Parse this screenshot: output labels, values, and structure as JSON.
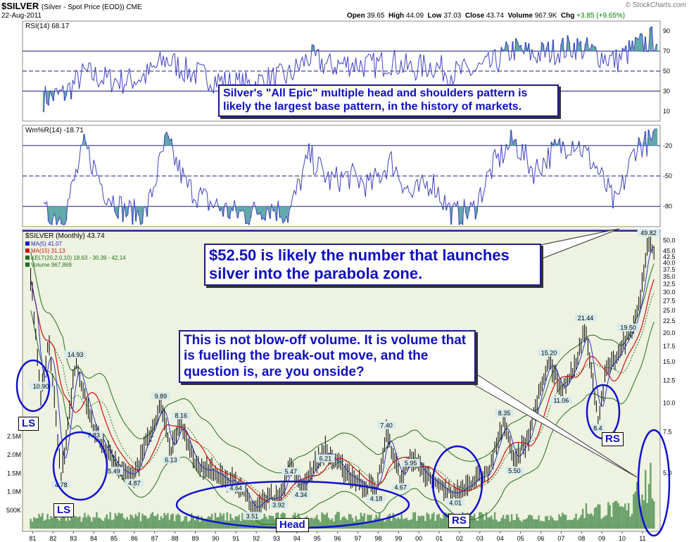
{
  "header": {
    "symbol": "$SILVER",
    "symbol_desc": "(Silver - Spot Price (EOD)) CME",
    "date": "22-Aug-2011",
    "stats": [
      {
        "label": "Open",
        "value": "39.65"
      },
      {
        "label": "High",
        "value": "44.09"
      },
      {
        "label": "Low",
        "value": "37.03"
      },
      {
        "label": "Close",
        "value": "43.74"
      },
      {
        "label": "Volume",
        "value": "967.9K"
      },
      {
        "label": "Chg",
        "value": "+3.85 (+9.65%)"
      }
    ],
    "brand": "© StockCharts.com"
  },
  "annotations": {
    "callout_1": "Silver's \"All Epic\" multiple head and shoulders pattern is likely the largest base pattern, in the history of markets.",
    "callout_2": "$52.50 is likely the number that launches silver into the parabola zone.",
    "callout_3": "This is not blow-off volume.  It is volume that is fuelling the break-out move, and the question is, are you onside?",
    "circle_labels": [
      "LS",
      "LS",
      "Head",
      "RS",
      "RS"
    ]
  },
  "colors": {
    "price_bar": "#000000",
    "ma5": "#2020c0",
    "ma15": "#d01010",
    "kelt": "#207020",
    "volume": "#6aa06a",
    "panel_bg": "#ffffff",
    "main_bg": "#eef2e0",
    "callout": "#1010c0",
    "indicator": "#4040c0",
    "fill": "#5fa8a8"
  },
  "chart_data": [
    {
      "type": "line",
      "title": "RSI(14) 68.17",
      "x": [
        "1981",
        "1982",
        "1983",
        "1984",
        "1985",
        "1986",
        "1987",
        "1988",
        "1989",
        "1990",
        "1991",
        "1992",
        "1993",
        "1994",
        "1995",
        "1996",
        "1997",
        "1998",
        "1999",
        "2000",
        "2001",
        "2002",
        "2003",
        "2004",
        "2005",
        "2006",
        "2007",
        "2008",
        "2009",
        "2010",
        "2011"
      ],
      "series": [
        {
          "values": [
            23,
            27,
            48,
            42,
            40,
            45,
            62,
            50,
            44,
            38,
            36,
            42,
            45,
            64,
            55,
            58,
            55,
            60,
            52,
            56,
            48,
            50,
            57,
            72,
            66,
            70,
            75,
            68,
            60,
            74,
            84
          ]
        }
      ],
      "ylim": [
        0,
        100
      ],
      "y_ticks": [
        10,
        30,
        50,
        70,
        90
      ],
      "reference_lines": [
        30,
        50,
        70
      ]
    },
    {
      "type": "line",
      "title": "Wm%R(14) -18.71",
      "x": [
        "1981",
        "1982",
        "1983",
        "1984",
        "1985",
        "1986",
        "1987",
        "1988",
        "1989",
        "1990",
        "1991",
        "1992",
        "1993",
        "1994",
        "1995",
        "1996",
        "1997",
        "1998",
        "1999",
        "2000",
        "2001",
        "2002",
        "2003",
        "2004",
        "2005",
        "2006",
        "2007",
        "2008",
        "2009",
        "2010",
        "2011"
      ],
      "series": [
        {
          "values": [
            -88,
            -90,
            -20,
            -65,
            -85,
            -88,
            -15,
            -60,
            -75,
            -85,
            -88,
            -80,
            -88,
            -30,
            -55,
            -50,
            -60,
            -35,
            -70,
            -55,
            -88,
            -85,
            -40,
            -15,
            -45,
            -25,
            -15,
            -40,
            -80,
            -20,
            -15
          ]
        }
      ],
      "ylim": [
        -100,
        0
      ],
      "y_ticks": [
        -20,
        -50,
        -80
      ],
      "reference_lines": [
        -20,
        -50,
        -80
      ]
    },
    {
      "type": "line",
      "title": "$SILVER (Monthly) 43.74",
      "legend": [
        "MA(5) 41.07",
        "MA(15) 31.13",
        "KELT(20,2.0,10) 18.63 - 30.39 - 42.14",
        "Volume 967,869"
      ],
      "x_ticks": [
        "81",
        "82",
        "83",
        "84",
        "85",
        "86",
        "87",
        "88",
        "89",
        "90",
        "91",
        "92",
        "93",
        "94",
        "95",
        "96",
        "97",
        "98",
        "99",
        "00",
        "01",
        "02",
        "03",
        "04",
        "05",
        "06",
        "07",
        "08",
        "09",
        "10",
        "11"
      ],
      "y_ticks": [
        5.0,
        7.5,
        10.0,
        12.5,
        15.0,
        17.5,
        20.0,
        22.5,
        25.0,
        27.5,
        30.0,
        32.5,
        35.0,
        37.5,
        40.0,
        42.5,
        45.0,
        50.0
      ],
      "volume_ticks": [
        "500K",
        "1.0M",
        "1.5M",
        "2.0M",
        "2.5M"
      ],
      "scale": "log",
      "ylim": [
        3.0,
        52.0
      ],
      "x": [
        1980.9,
        1981.4,
        1981.8,
        1982.4,
        1983.1,
        1984.0,
        1985.0,
        1986.0,
        1987.3,
        1987.8,
        1988.3,
        1989.0,
        1990.0,
        1991.0,
        1991.8,
        1992.6,
        1993.1,
        1993.7,
        1994.2,
        1995.4,
        1996.2,
        1997.0,
        1997.9,
        1998.4,
        1999.1,
        1999.6,
        2000.2,
        2001.0,
        2001.8,
        2002.6,
        2003.4,
        2004.2,
        2004.7,
        2005.4,
        2006.0,
        2006.4,
        2007.0,
        2007.7,
        2008.2,
        2008.8,
        2009.2,
        2009.8,
        2010.3,
        2010.8,
        2011.3,
        2011.6
      ],
      "values": [
        35,
        10.9,
        19,
        4.78,
        14.93,
        7.83,
        5.49,
        4.87,
        9.89,
        6.13,
        8.16,
        5.5,
        4.9,
        4.64,
        3.51,
        3.9,
        3.92,
        5.47,
        4.34,
        6.21,
        5.2,
        4.6,
        4.18,
        7.4,
        4.67,
        5.95,
        4.9,
        4.4,
        4.01,
        4.6,
        5.0,
        8.35,
        5.5,
        7.2,
        11.5,
        15.2,
        11.06,
        14.5,
        21.44,
        8.4,
        13.5,
        16.0,
        19.5,
        25,
        49.82,
        43.74
      ],
      "annotations": [
        {
          "x": 1981.4,
          "y": 10.9,
          "text": "10.90"
        },
        {
          "x": 1982.4,
          "y": 4.78,
          "text": "4.78"
        },
        {
          "x": 1983.1,
          "y": 14.93,
          "text": "14.93"
        },
        {
          "x": 1984.0,
          "y": 7.83,
          "text": "7.83"
        },
        {
          "x": 1985.0,
          "y": 5.49,
          "text": "5.49"
        },
        {
          "x": 1986.0,
          "y": 4.87,
          "text": "4.87"
        },
        {
          "x": 1987.3,
          "y": 9.89,
          "text": "9.89"
        },
        {
          "x": 1987.8,
          "y": 6.13,
          "text": "6.13"
        },
        {
          "x": 1988.3,
          "y": 8.16,
          "text": "8.16"
        },
        {
          "x": 1991.0,
          "y": 4.64,
          "text": "4.64"
        },
        {
          "x": 1991.8,
          "y": 3.51,
          "text": "3.51"
        },
        {
          "x": 1993.1,
          "y": 3.92,
          "text": "3.92"
        },
        {
          "x": 1993.7,
          "y": 5.47,
          "text": "5.47"
        },
        {
          "x": 1994.2,
          "y": 4.34,
          "text": "4.34"
        },
        {
          "x": 1995.4,
          "y": 6.21,
          "text": "6.21"
        },
        {
          "x": 1997.9,
          "y": 4.18,
          "text": "4.18"
        },
        {
          "x": 1998.4,
          "y": 7.4,
          "text": "7.40"
        },
        {
          "x": 1999.1,
          "y": 4.67,
          "text": "4.67"
        },
        {
          "x": 1999.6,
          "y": 5.95,
          "text": "5.95"
        },
        {
          "x": 2001.8,
          "y": 4.01,
          "text": "4.01"
        },
        {
          "x": 2004.2,
          "y": 8.35,
          "text": "8.35"
        },
        {
          "x": 2004.7,
          "y": 5.5,
          "text": "5.50"
        },
        {
          "x": 2006.4,
          "y": 15.2,
          "text": "15.20"
        },
        {
          "x": 2007.0,
          "y": 11.06,
          "text": "11.06"
        },
        {
          "x": 2008.2,
          "y": 21.44,
          "text": "21.44"
        },
        {
          "x": 2008.8,
          "y": 8.4,
          "text": "8.4"
        },
        {
          "x": 2010.3,
          "y": 19.5,
          "text": "19.50"
        },
        {
          "x": 2011.3,
          "y": 49.82,
          "text": "49.82"
        }
      ]
    }
  ]
}
